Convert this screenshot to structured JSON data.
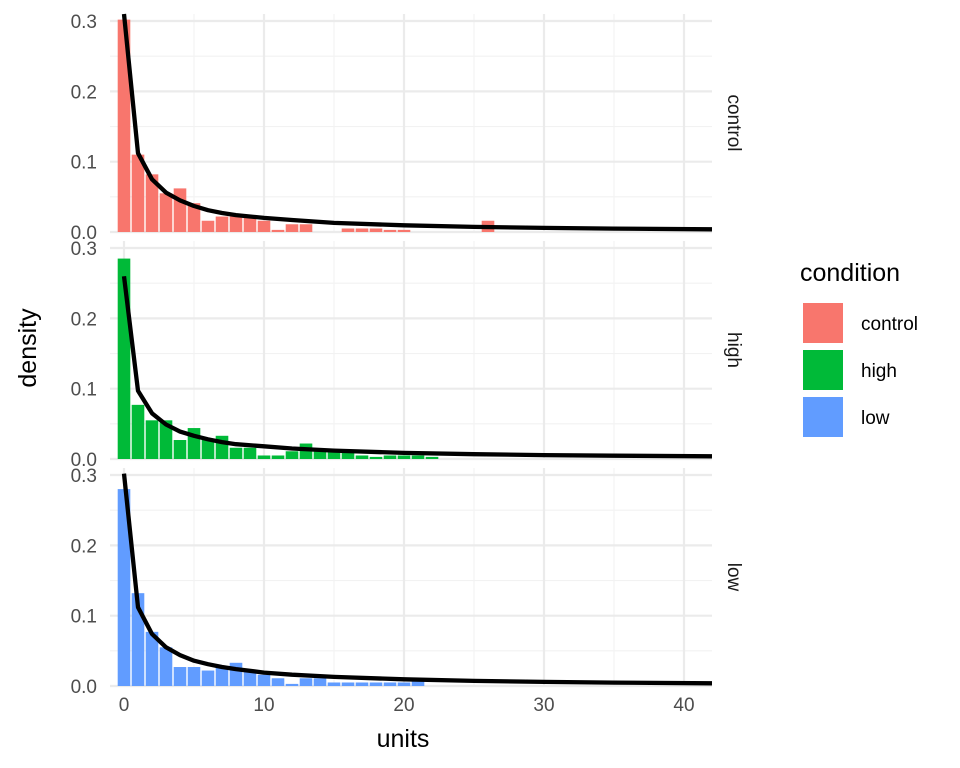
{
  "chart_data": {
    "type": "bar",
    "xlabel": "units",
    "ylabel": "density",
    "xlim": [
      -1,
      42
    ],
    "ylim": [
      0,
      0.31
    ],
    "x_ticks": [
      0,
      10,
      20,
      30,
      40
    ],
    "y_ticks": [
      0.0,
      0.1,
      0.2,
      0.3
    ],
    "y_tick_labels": [
      "0.0",
      "0.1",
      "0.2",
      "0.3"
    ],
    "grid": true,
    "legend": {
      "title": "condition",
      "position": "right",
      "entries": [
        {
          "label": "control",
          "color": "#F8766D"
        },
        {
          "label": "high",
          "color": "#00BA38"
        },
        {
          "label": "low",
          "color": "#619CFF"
        }
      ]
    },
    "facets": [
      {
        "label": "control",
        "color": "#F8766D",
        "bars": [
          {
            "x": 0,
            "y": 0.302
          },
          {
            "x": 1,
            "y": 0.11
          },
          {
            "x": 2,
            "y": 0.082
          },
          {
            "x": 3,
            "y": 0.055
          },
          {
            "x": 4,
            "y": 0.062
          },
          {
            "x": 5,
            "y": 0.041
          },
          {
            "x": 6,
            "y": 0.016
          },
          {
            "x": 7,
            "y": 0.022
          },
          {
            "x": 8,
            "y": 0.022
          },
          {
            "x": 9,
            "y": 0.022
          },
          {
            "x": 10,
            "y": 0.016
          },
          {
            "x": 11,
            "y": 0.003
          },
          {
            "x": 12,
            "y": 0.011
          },
          {
            "x": 13,
            "y": 0.011
          },
          {
            "x": 16,
            "y": 0.005
          },
          {
            "x": 17,
            "y": 0.005
          },
          {
            "x": 18,
            "y": 0.005
          },
          {
            "x": 19,
            "y": 0.003
          },
          {
            "x": 20,
            "y": 0.003
          },
          {
            "x": 26,
            "y": 0.016
          }
        ],
        "curve": [
          {
            "x": 0,
            "y": 0.31
          },
          {
            "x": 1,
            "y": 0.112
          },
          {
            "x": 2,
            "y": 0.075
          },
          {
            "x": 3,
            "y": 0.056
          },
          {
            "x": 4,
            "y": 0.045
          },
          {
            "x": 5,
            "y": 0.037
          },
          {
            "x": 6,
            "y": 0.031
          },
          {
            "x": 7,
            "y": 0.027
          },
          {
            "x": 8,
            "y": 0.024
          },
          {
            "x": 10,
            "y": 0.02
          },
          {
            "x": 12,
            "y": 0.017
          },
          {
            "x": 15,
            "y": 0.013
          },
          {
            "x": 20,
            "y": 0.0095
          },
          {
            "x": 25,
            "y": 0.0073
          },
          {
            "x": 30,
            "y": 0.0058
          },
          {
            "x": 35,
            "y": 0.0048
          },
          {
            "x": 42,
            "y": 0.0039
          }
        ]
      },
      {
        "label": "high",
        "color": "#00BA38",
        "bars": [
          {
            "x": 0,
            "y": 0.285
          },
          {
            "x": 1,
            "y": 0.077
          },
          {
            "x": 2,
            "y": 0.055
          },
          {
            "x": 3,
            "y": 0.055
          },
          {
            "x": 4,
            "y": 0.027
          },
          {
            "x": 5,
            "y": 0.044
          },
          {
            "x": 6,
            "y": 0.027
          },
          {
            "x": 7,
            "y": 0.033
          },
          {
            "x": 8,
            "y": 0.016
          },
          {
            "x": 9,
            "y": 0.016
          },
          {
            "x": 10,
            "y": 0.005
          },
          {
            "x": 11,
            "y": 0.005
          },
          {
            "x": 12,
            "y": 0.011
          },
          {
            "x": 13,
            "y": 0.022
          },
          {
            "x": 14,
            "y": 0.011
          },
          {
            "x": 15,
            "y": 0.011
          },
          {
            "x": 16,
            "y": 0.011
          },
          {
            "x": 17,
            "y": 0.005
          },
          {
            "x": 18,
            "y": 0.003
          },
          {
            "x": 19,
            "y": 0.005
          },
          {
            "x": 20,
            "y": 0.005
          },
          {
            "x": 21,
            "y": 0.005
          },
          {
            "x": 22,
            "y": 0.003
          }
        ],
        "curve": [
          {
            "x": 0,
            "y": 0.26
          },
          {
            "x": 1,
            "y": 0.097
          },
          {
            "x": 2,
            "y": 0.065
          },
          {
            "x": 3,
            "y": 0.049
          },
          {
            "x": 4,
            "y": 0.039
          },
          {
            "x": 5,
            "y": 0.033
          },
          {
            "x": 6,
            "y": 0.028
          },
          {
            "x": 7,
            "y": 0.024
          },
          {
            "x": 8,
            "y": 0.021
          },
          {
            "x": 10,
            "y": 0.018
          },
          {
            "x": 12,
            "y": 0.015
          },
          {
            "x": 15,
            "y": 0.012
          },
          {
            "x": 20,
            "y": 0.0087
          },
          {
            "x": 25,
            "y": 0.0068
          },
          {
            "x": 30,
            "y": 0.0056
          },
          {
            "x": 35,
            "y": 0.0047
          },
          {
            "x": 42,
            "y": 0.0038
          }
        ]
      },
      {
        "label": "low",
        "color": "#619CFF",
        "bars": [
          {
            "x": 0,
            "y": 0.28
          },
          {
            "x": 1,
            "y": 0.132
          },
          {
            "x": 2,
            "y": 0.077
          },
          {
            "x": 3,
            "y": 0.055
          },
          {
            "x": 4,
            "y": 0.027
          },
          {
            "x": 5,
            "y": 0.027
          },
          {
            "x": 6,
            "y": 0.022
          },
          {
            "x": 7,
            "y": 0.027
          },
          {
            "x": 8,
            "y": 0.033
          },
          {
            "x": 9,
            "y": 0.022
          },
          {
            "x": 10,
            "y": 0.016
          },
          {
            "x": 11,
            "y": 0.011
          },
          {
            "x": 12,
            "y": 0.003
          },
          {
            "x": 13,
            "y": 0.011
          },
          {
            "x": 14,
            "y": 0.011
          },
          {
            "x": 15,
            "y": 0.005
          },
          {
            "x": 16,
            "y": 0.005
          },
          {
            "x": 17,
            "y": 0.005
          },
          {
            "x": 18,
            "y": 0.005
          },
          {
            "x": 19,
            "y": 0.005
          },
          {
            "x": 20,
            "y": 0.005
          },
          {
            "x": 21,
            "y": 0.011
          }
        ],
        "curve": [
          {
            "x": 0,
            "y": 0.302
          },
          {
            "x": 1,
            "y": 0.112
          },
          {
            "x": 2,
            "y": 0.074
          },
          {
            "x": 3,
            "y": 0.055
          },
          {
            "x": 4,
            "y": 0.044
          },
          {
            "x": 5,
            "y": 0.036
          },
          {
            "x": 6,
            "y": 0.031
          },
          {
            "x": 7,
            "y": 0.027
          },
          {
            "x": 8,
            "y": 0.024
          },
          {
            "x": 10,
            "y": 0.019
          },
          {
            "x": 12,
            "y": 0.016
          },
          {
            "x": 15,
            "y": 0.013
          },
          {
            "x": 20,
            "y": 0.0095
          },
          {
            "x": 25,
            "y": 0.0073
          },
          {
            "x": 30,
            "y": 0.0058
          },
          {
            "x": 35,
            "y": 0.0048
          },
          {
            "x": 42,
            "y": 0.0039
          }
        ]
      }
    ]
  }
}
